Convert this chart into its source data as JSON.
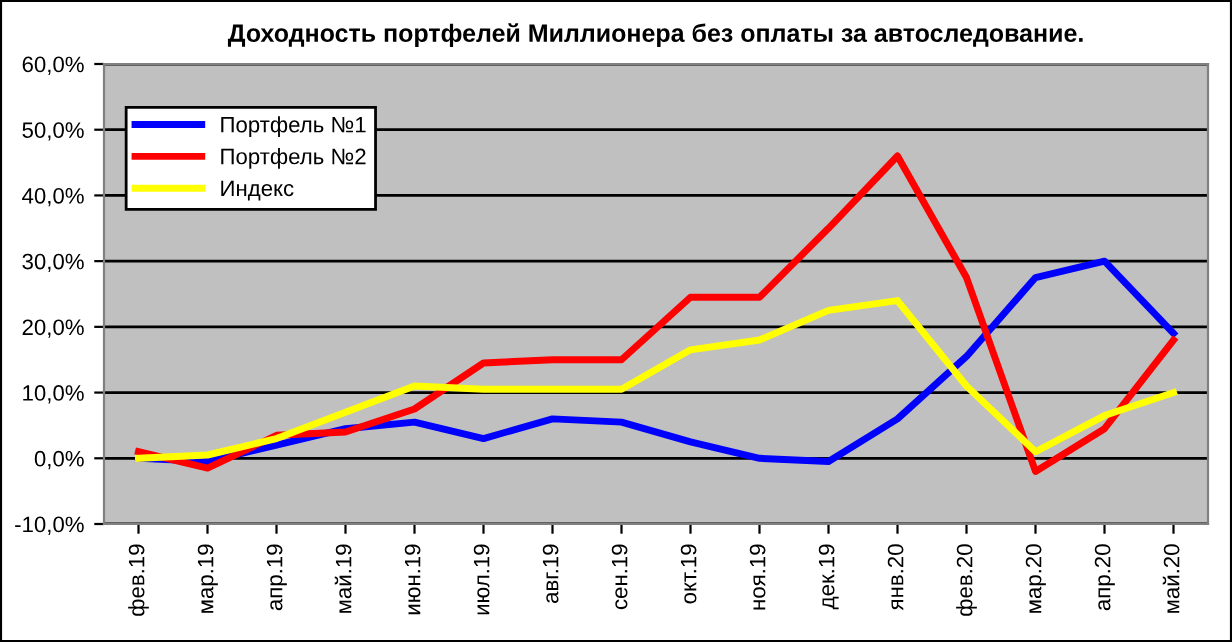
{
  "chart_data": {
    "type": "line",
    "title": "Доходность портфелей Миллионера без оплаты за автоследование.",
    "categories": [
      "фев.19",
      "мар.19",
      "апр.19",
      "май.19",
      "июн.19",
      "июл.19",
      "авг.19",
      "сен.19",
      "окт.19",
      "ноя.19",
      "дек.19",
      "янв.20",
      "фев.20",
      "мар.20",
      "апр.20",
      "май.20"
    ],
    "series": [
      {
        "name": "Портфель №1",
        "color": "#0000ff",
        "values": [
          0,
          -0.5,
          2,
          4.5,
          5.5,
          3,
          6,
          5.5,
          2.5,
          0,
          -0.5,
          6,
          15.5,
          27.5,
          30,
          19
        ]
      },
      {
        "name": "Портфель №2",
        "color": "#ff0000",
        "values": [
          1,
          -1.5,
          3.5,
          4,
          7.5,
          14.5,
          15,
          15,
          24.5,
          24.5,
          35,
          46,
          27.5,
          -2,
          4.5,
          18
        ]
      },
      {
        "name": "Индекс",
        "color": "#ffff00",
        "values": [
          0,
          0.5,
          3,
          7,
          11,
          10.5,
          10.5,
          10.5,
          16.5,
          18,
          22.5,
          24,
          11,
          1,
          6.5,
          10
        ]
      }
    ],
    "ylim": [
      -10,
      60
    ],
    "yticks": [
      {
        "value": -10,
        "label": "-10,0%"
      },
      {
        "value": 0,
        "label": "0,0%"
      },
      {
        "value": 10,
        "label": "10,0%"
      },
      {
        "value": 20,
        "label": "20,0%"
      },
      {
        "value": 30,
        "label": "30,0%"
      },
      {
        "value": 40,
        "label": "40,0%"
      },
      {
        "value": 50,
        "label": "50,0%"
      },
      {
        "value": 60,
        "label": "60,0%"
      }
    ],
    "grid": "y",
    "legend": "top left",
    "marker": "none",
    "line_style": "solid"
  }
}
